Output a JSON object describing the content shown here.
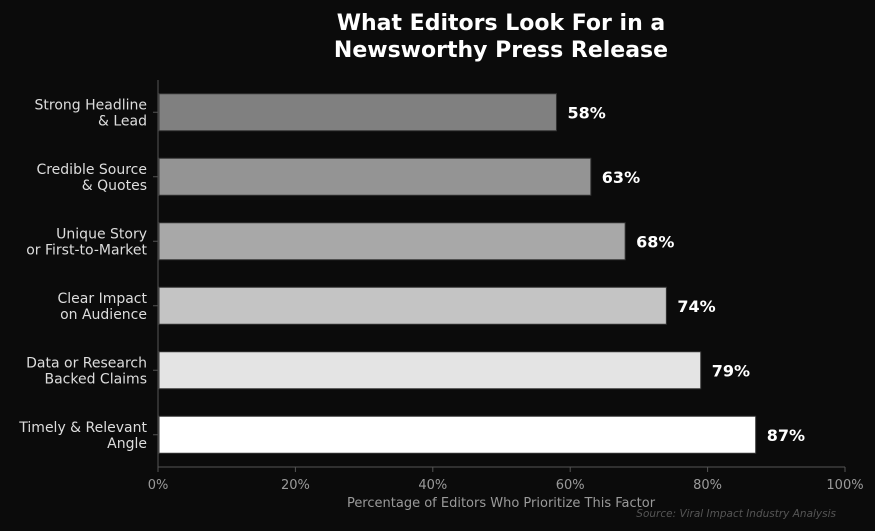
{
  "chart_data": {
    "type": "bar",
    "orientation": "horizontal",
    "title": "What Editors Look For in a\nNewsworthy Press Release",
    "xlabel": "Percentage of Editors Who Prioritize This Factor",
    "source": "Source: Viral Impact Industry Analysis",
    "xlim": [
      0,
      100
    ],
    "xticks": [
      0,
      20,
      40,
      60,
      80,
      100
    ],
    "xtick_suffix": "%",
    "grid": false,
    "categories": [
      "Strong Headline\n& Lead",
      "Credible Source\n& Quotes",
      "Unique Story\nor First-to-Market",
      "Clear Impact\non Audience",
      "Data or Research\nBacked Claims",
      "Timely & Relevant\nAngle"
    ],
    "values": [
      58,
      63,
      68,
      74,
      79,
      87
    ],
    "data_labels": [
      "58%",
      "63%",
      "68%",
      "74%",
      "79%",
      "87%"
    ],
    "bar_colors": [
      "#808080",
      "#949494",
      "#a8a8a8",
      "#c4c4c4",
      "#e4e4e4",
      "#ffffff"
    ],
    "background_color": "#0b0b0b",
    "axis_color": "#555555",
    "label_color": "#dddddd",
    "tick_color": "#9a9a9a"
  }
}
